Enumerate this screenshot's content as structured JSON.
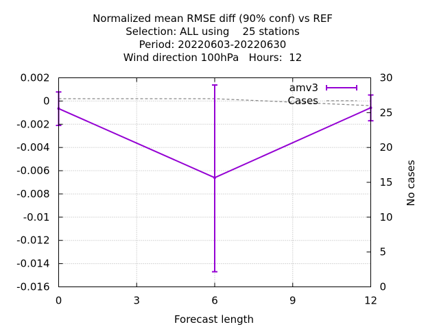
{
  "chart_data": {
    "type": "line",
    "title_lines": [
      "Normalized mean RMSE diff (90% conf) vs REF",
      "Selection: ALL using    25 stations",
      "Period: 20220603-20220630",
      "Wind direction 100hPa   Hours:  12"
    ],
    "xlabel": "Forecast length",
    "ylabel": "",
    "y2label": "No cases",
    "xlim": [
      0,
      12
    ],
    "ylim": [
      -0.016,
      0.002
    ],
    "y2lim": [
      0,
      30
    ],
    "xticks": [
      "0",
      "3",
      "6",
      "9",
      "12"
    ],
    "yticks": [
      "0.002",
      "0",
      "-0.002",
      "-0.004",
      "-0.006",
      "-0.008",
      "-0.01",
      "-0.012",
      "-0.014",
      "-0.016"
    ],
    "y2ticks": [
      "30",
      "25",
      "20",
      "15",
      "10",
      "5",
      "0"
    ],
    "grid": true,
    "legend_position": "top-right",
    "series": [
      {
        "name": "amv3",
        "axis": "y",
        "color": "#9400d3",
        "style": "line-errorbars",
        "x": [
          0,
          6,
          12
        ],
        "y": [
          -0.00065,
          -0.0066,
          -0.00058
        ],
        "y_low": [
          -0.0021,
          -0.0147,
          -0.0017
        ],
        "y_high": [
          0.00078,
          0.00138,
          0.00052
        ]
      },
      {
        "name": "Cases",
        "axis": "y2",
        "color": "#888888",
        "style": "dashed",
        "x": [
          0,
          6,
          12
        ],
        "y": [
          27,
          27,
          26
        ]
      }
    ]
  }
}
